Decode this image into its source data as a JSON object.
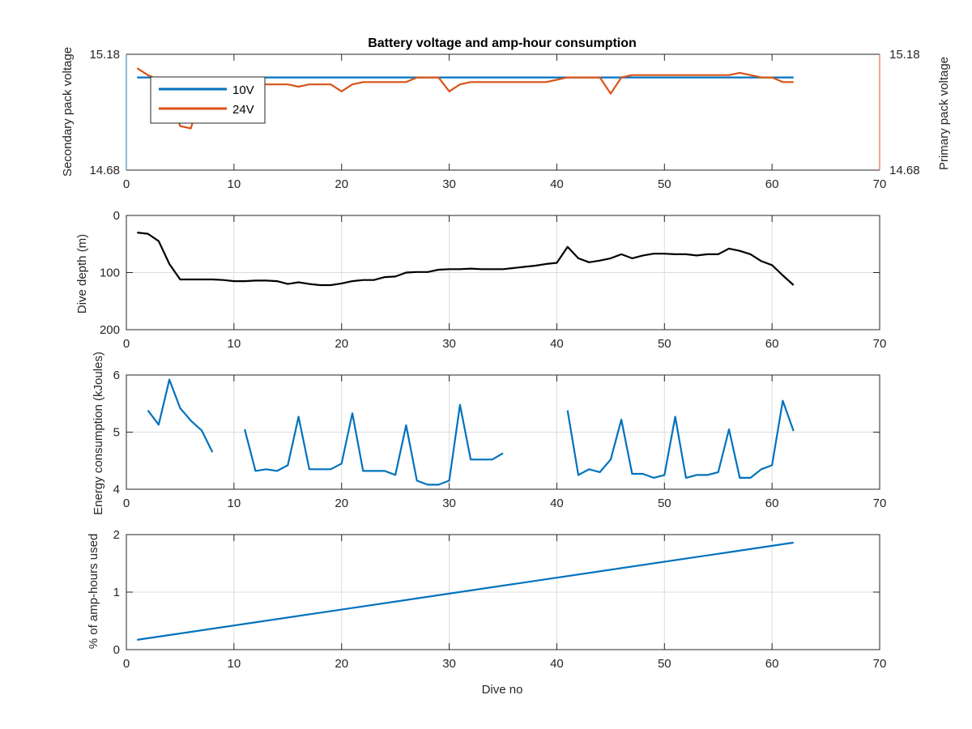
{
  "chart_data": [
    {
      "type": "line",
      "title": "Battery voltage and amp-hour consumption",
      "xlabel": "",
      "ylabel": "Secondary pack voltage",
      "ylabel_right": "Primary pack voltage",
      "xlim": [
        0,
        70
      ],
      "ylim": [
        14.68,
        15.18
      ],
      "ylim_right": [
        14.68,
        15.18
      ],
      "xticks": [
        0,
        10,
        20,
        30,
        40,
        50,
        60,
        70
      ],
      "yticks": [
        14.68,
        15.18
      ],
      "yticks_right": [
        14.68,
        15.18
      ],
      "tick_labels_left": [
        "14.68",
        "15.18"
      ],
      "tick_labels_right": [
        "14.68",
        "15.18"
      ],
      "grid": false,
      "legend_position": "top-left",
      "colors": {
        "left_axis": "#1f77b4",
        "right_axis": "#d95319",
        "series_10v": "#0072bd",
        "series_24v": "#d95319"
      },
      "series": [
        {
          "name": "10V",
          "axis": "left",
          "x": [
            1,
            62
          ],
          "y": [
            15.08,
            15.08
          ]
        },
        {
          "name": "24V",
          "axis": "right",
          "x": [
            1,
            2,
            3,
            4,
            5,
            6,
            7,
            8,
            9,
            10,
            11,
            12,
            13,
            14,
            15,
            16,
            17,
            18,
            19,
            20,
            21,
            22,
            23,
            24,
            25,
            26,
            27,
            28,
            29,
            30,
            31,
            32,
            33,
            34,
            35,
            36,
            37,
            38,
            39,
            40,
            41,
            42,
            43,
            44,
            45,
            46,
            47,
            48,
            49,
            50,
            51,
            52,
            53,
            54,
            55,
            56,
            57,
            58,
            59,
            60,
            61,
            62
          ],
          "y": [
            15.12,
            15.09,
            15.07,
            15.04,
            14.87,
            14.86,
            15.03,
            15.05,
            15.05,
            15.05,
            15.05,
            15.05,
            15.05,
            15.05,
            15.05,
            15.04,
            15.05,
            15.05,
            15.05,
            15.02,
            15.05,
            15.06,
            15.06,
            15.06,
            15.06,
            15.06,
            15.08,
            15.08,
            15.08,
            15.02,
            15.05,
            15.06,
            15.06,
            15.06,
            15.06,
            15.06,
            15.06,
            15.06,
            15.06,
            15.07,
            15.08,
            15.08,
            15.08,
            15.08,
            15.01,
            15.08,
            15.09,
            15.09,
            15.09,
            15.09,
            15.09,
            15.09,
            15.09,
            15.09,
            15.09,
            15.09,
            15.1,
            15.09,
            15.08,
            15.08,
            15.06,
            15.06
          ]
        }
      ]
    },
    {
      "type": "line",
      "xlabel": "",
      "ylabel": "Dive depth (m)",
      "xlim": [
        0,
        70
      ],
      "ylim": [
        0,
        200
      ],
      "y_reversed": true,
      "xticks": [
        0,
        10,
        20,
        30,
        40,
        50,
        60,
        70
      ],
      "yticks": [
        0,
        100,
        200
      ],
      "grid": true,
      "series": [
        {
          "color": "#000000",
          "x": [
            1,
            2,
            3,
            4,
            5,
            6,
            7,
            8,
            9,
            10,
            11,
            12,
            13,
            14,
            15,
            16,
            17,
            18,
            19,
            20,
            21,
            22,
            23,
            24,
            25,
            26,
            27,
            28,
            29,
            30,
            31,
            32,
            33,
            34,
            35,
            36,
            37,
            38,
            39,
            40,
            41,
            42,
            43,
            44,
            45,
            46,
            47,
            48,
            49,
            50,
            51,
            52,
            53,
            54,
            55,
            56,
            57,
            58,
            59,
            60,
            61,
            62
          ],
          "y": [
            30,
            32,
            45,
            85,
            112,
            112,
            112,
            112,
            113,
            115,
            115,
            114,
            114,
            115,
            120,
            117,
            120,
            122,
            122,
            119,
            115,
            113,
            113,
            108,
            107,
            100,
            99,
            99,
            95,
            94,
            94,
            93,
            94,
            94,
            94,
            92,
            90,
            88,
            85,
            83,
            55,
            75,
            82,
            79,
            75,
            68,
            75,
            70,
            67,
            67,
            68,
            68,
            70,
            68,
            68,
            58,
            62,
            68,
            80,
            87,
            105,
            122
          ]
        }
      ]
    },
    {
      "type": "line",
      "xlabel": "",
      "ylabel": "Energy consumption (kJoules)",
      "xlim": [
        0,
        70
      ],
      "ylim": [
        4,
        6
      ],
      "xticks": [
        0,
        10,
        20,
        30,
        40,
        50,
        60,
        70
      ],
      "yticks": [
        4,
        5,
        6
      ],
      "grid": true,
      "series": [
        {
          "color": "#0072bd",
          "segments": [
            {
              "x": [
                2,
                3,
                4,
                5,
                6,
                7,
                8
              ],
              "y": [
                5.38,
                5.13,
                5.92,
                5.42,
                5.2,
                5.03,
                4.65
              ]
            },
            {
              "x": [
                11,
                12,
                13,
                14,
                15,
                16,
                17,
                18,
                19,
                20,
                21,
                22,
                23,
                24,
                25,
                26,
                27,
                28,
                29,
                30,
                31,
                32,
                33,
                34,
                35
              ],
              "y": [
                5.05,
                4.32,
                4.35,
                4.32,
                4.42,
                5.27,
                4.35,
                4.35,
                4.35,
                4.45,
                5.33,
                4.32,
                4.32,
                4.32,
                4.25,
                5.12,
                4.15,
                4.08,
                4.08,
                4.15,
                5.48,
                4.52,
                4.52,
                4.52,
                4.63
              ]
            },
            {
              "x": [
                41,
                42,
                43,
                44,
                45,
                46,
                47,
                48,
                49,
                50,
                51,
                52,
                53,
                54,
                55,
                56,
                57,
                58,
                59,
                60,
                61,
                62
              ],
              "y": [
                5.38,
                4.25,
                4.35,
                4.3,
                4.52,
                5.22,
                4.27,
                4.27,
                4.2,
                4.25,
                5.27,
                4.2,
                4.25,
                4.25,
                4.3,
                5.05,
                4.2,
                4.2,
                4.35,
                4.42,
                5.55,
                5.02
              ]
            }
          ]
        }
      ]
    },
    {
      "type": "line",
      "xlabel": "Dive no",
      "ylabel": "% of amp-hours used",
      "xlim": [
        0,
        70
      ],
      "ylim": [
        0,
        2
      ],
      "xticks": [
        0,
        10,
        20,
        30,
        40,
        50,
        60,
        70
      ],
      "yticks": [
        0,
        1,
        2
      ],
      "grid": true,
      "series": [
        {
          "color": "#0072bd",
          "x": [
            1,
            62
          ],
          "y": [
            0.17,
            1.86
          ]
        }
      ]
    }
  ]
}
